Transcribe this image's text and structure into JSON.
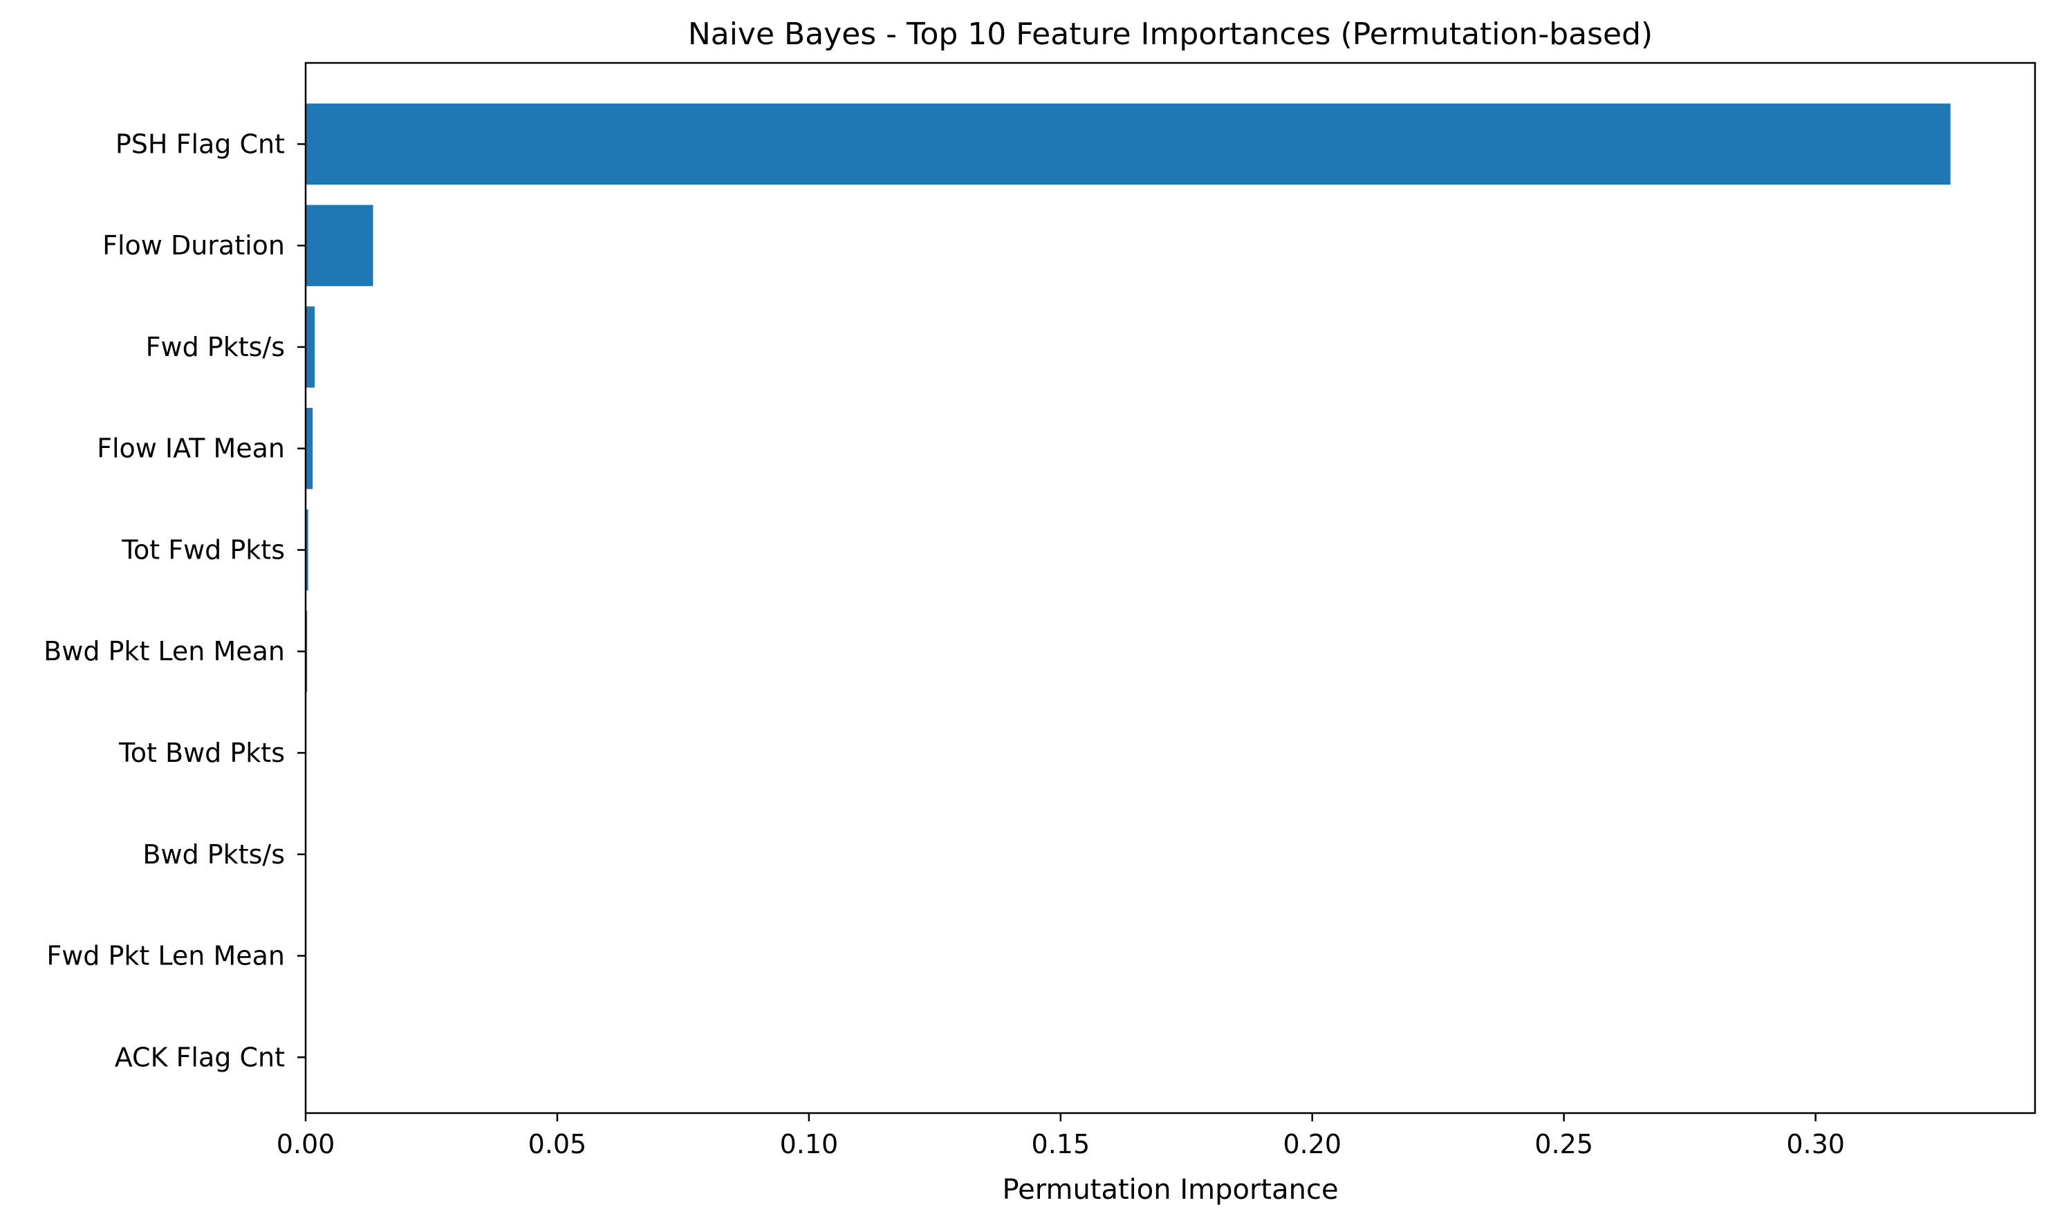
{
  "chart_data": {
    "type": "bar",
    "orientation": "horizontal",
    "title": "Naive Bayes - Top 10 Feature Importances (Permutation-based)",
    "xlabel": "Permutation Importance",
    "ylabel": "",
    "categories": [
      "PSH Flag Cnt",
      "Flow Duration",
      "Fwd Pkts/s",
      "Flow IAT Mean",
      "Tot Fwd Pkts",
      "Bwd Pkt Len Mean",
      "Tot Bwd Pkts",
      "Bwd Pkts/s",
      "Fwd Pkt Len Mean",
      "ACK Flag Cnt"
    ],
    "values": [
      0.3268,
      0.0134,
      0.0018,
      0.0014,
      0.0005,
      0.0003,
      0.0001,
      0.0,
      0.0,
      0.0
    ],
    "xlim": [
      0,
      0.3436
    ],
    "xticks": [
      0.0,
      0.05,
      0.1,
      0.15,
      0.2,
      0.25,
      0.3
    ],
    "xtick_labels": [
      "0.00",
      "0.05",
      "0.10",
      "0.15",
      "0.20",
      "0.25",
      "0.30"
    ],
    "grid": false,
    "legend": "none",
    "bar_color": "#1f77b4"
  }
}
